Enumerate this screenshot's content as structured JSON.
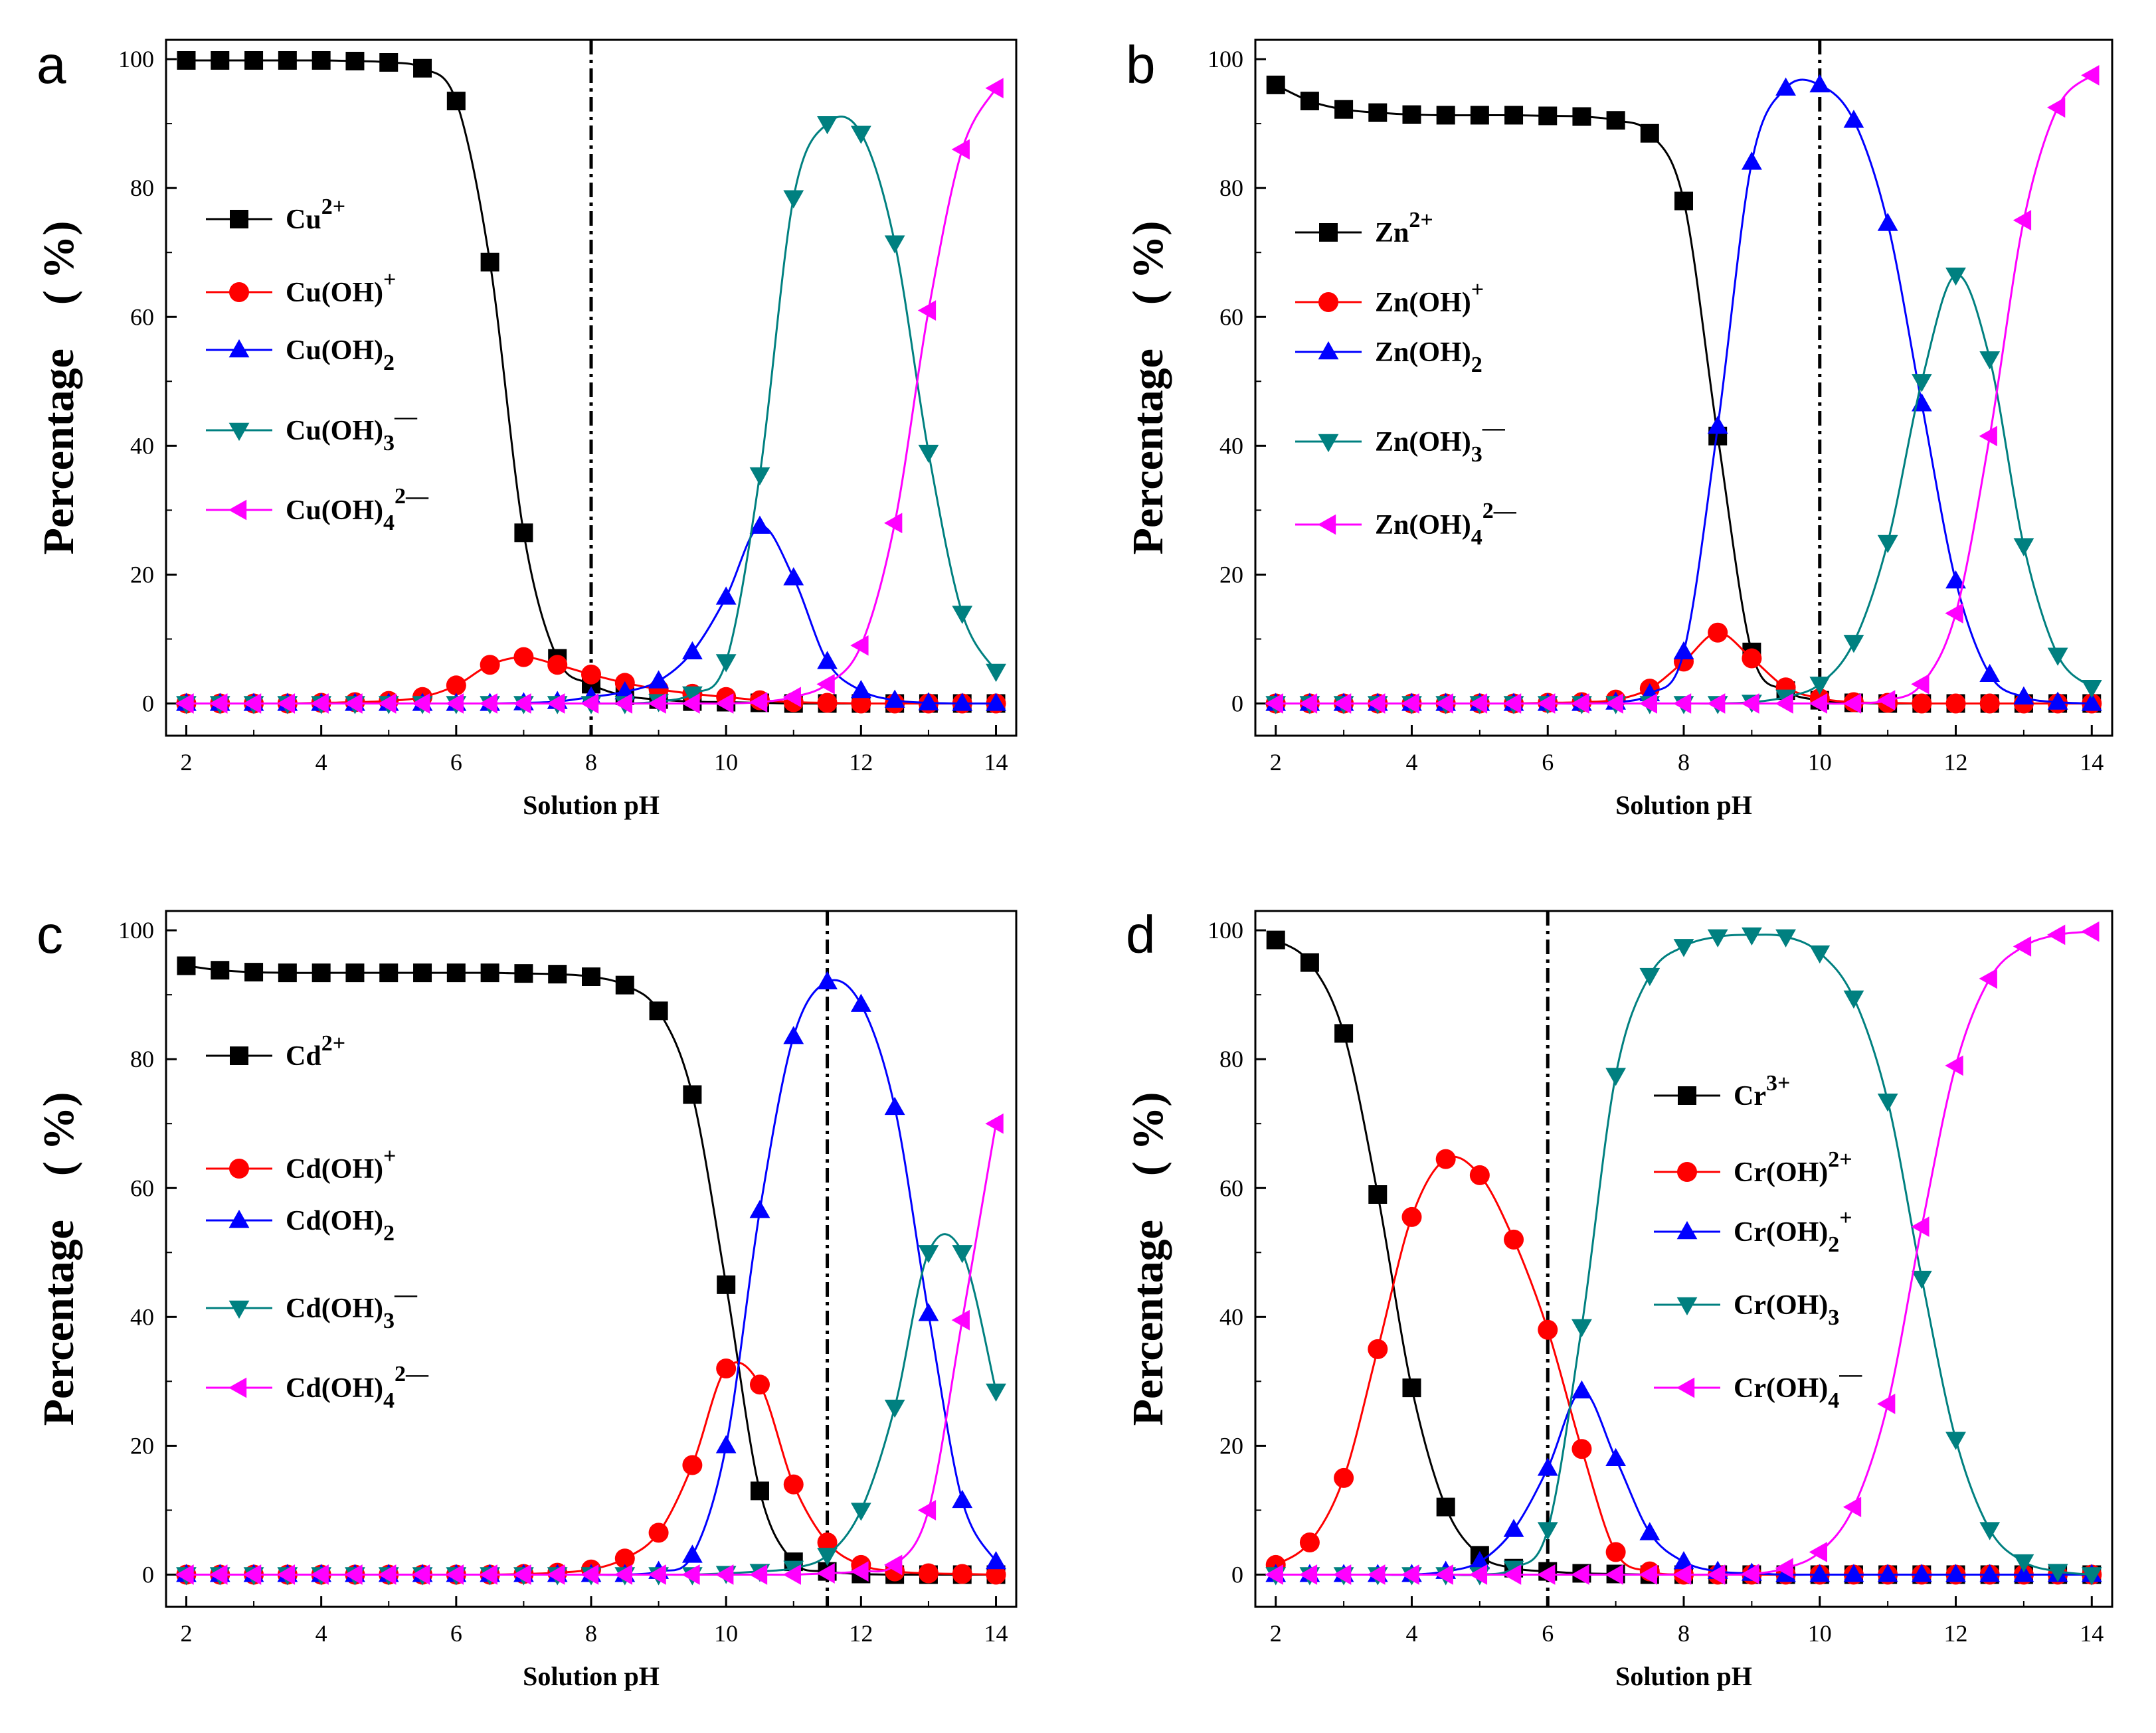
{
  "colors": {
    "series": [
      "#000000",
      "#ff0000",
      "#0000ff",
      "#008080",
      "#ff00ff"
    ],
    "axis": "#000000"
  },
  "chart_data": [
    {
      "panel": "a",
      "type": "line",
      "xlabel": "Solution pH",
      "ylabel": "Percentage　( %)",
      "xlim": [
        1.7,
        14.3
      ],
      "ylim": [
        -5,
        103
      ],
      "xticks": [
        2,
        4,
        6,
        8,
        10,
        12,
        14
      ],
      "yticks": [
        0,
        20,
        40,
        60,
        80,
        100
      ],
      "vline": 8,
      "x": [
        2,
        2.5,
        3,
        3.5,
        4,
        4.5,
        5,
        5.5,
        6,
        6.5,
        7,
        7.5,
        8,
        8.5,
        9,
        9.5,
        10,
        10.5,
        11,
        11.5,
        12,
        12.5,
        13,
        13.5,
        14
      ],
      "legend": [
        {
          "base": "Cu",
          "sup": "2+"
        },
        {
          "base": "Cu(OH)",
          "sup": "+"
        },
        {
          "base": "Cu(OH)",
          "sub": "2"
        },
        {
          "base": "Cu(OH)",
          "sub": "3",
          "sup": "—"
        },
        {
          "base": "Cu(OH)",
          "sub": "4",
          "sup": "2—"
        }
      ],
      "series": [
        {
          "marker": "square",
          "values": [
            99.8,
            99.8,
            99.8,
            99.8,
            99.8,
            99.7,
            99.5,
            98.6,
            93.5,
            68.5,
            26.5,
            7,
            3,
            1.2,
            0.6,
            0.3,
            0.2,
            0.1,
            0,
            0,
            0,
            0,
            0,
            0,
            0
          ]
        },
        {
          "marker": "circle",
          "values": [
            0,
            0,
            0,
            0,
            0.1,
            0.2,
            0.4,
            1,
            2.8,
            6,
            7.2,
            6,
            4.5,
            3.2,
            2.2,
            1.5,
            1,
            0.5,
            0.2,
            0.1,
            0,
            0,
            0,
            0,
            0
          ]
        },
        {
          "marker": "triangle-up",
          "values": [
            0,
            0,
            0,
            0,
            0,
            0,
            0,
            0,
            0,
            0,
            0.1,
            0.3,
            1,
            1.8,
            3.5,
            8,
            16.5,
            27.5,
            19.5,
            6.5,
            2,
            0.5,
            0.1,
            0,
            0
          ]
        },
        {
          "marker": "triangle-down",
          "values": [
            0,
            0,
            0,
            0,
            0,
            0,
            0,
            0,
            0,
            0,
            0,
            0,
            0,
            0,
            0.3,
            1.5,
            6.5,
            35.5,
            78.5,
            90,
            88.5,
            71.5,
            39,
            14,
            5
          ]
        },
        {
          "marker": "triangle-left",
          "values": [
            0,
            0,
            0,
            0,
            0,
            0,
            0,
            0,
            0,
            0,
            0,
            0,
            0,
            0,
            0,
            0,
            0,
            0.2,
            1,
            3,
            9,
            28,
            61,
            86,
            95.5
          ]
        }
      ]
    },
    {
      "panel": "b",
      "type": "line",
      "xlabel": "Solution pH",
      "ylabel": "Percentage　( %)",
      "xlim": [
        1.7,
        14.3
      ],
      "ylim": [
        -5,
        103
      ],
      "xticks": [
        2,
        4,
        6,
        8,
        10,
        12,
        14
      ],
      "yticks": [
        0,
        20,
        40,
        60,
        80,
        100
      ],
      "vline": 10,
      "x": [
        2,
        2.5,
        3,
        3.5,
        4,
        4.5,
        5,
        5.5,
        6,
        6.5,
        7,
        7.5,
        8,
        8.5,
        9,
        9.5,
        10,
        10.5,
        11,
        11.5,
        12,
        12.5,
        13,
        13.5,
        14
      ],
      "legend": [
        {
          "base": "Zn",
          "sup": "2+"
        },
        {
          "base": "Zn(OH)",
          "sup": "+"
        },
        {
          "base": "Zn(OH)",
          "sub": "2"
        },
        {
          "base": "Zn(OH)",
          "sub": "3",
          "sup": "—"
        },
        {
          "base": "Zn(OH)",
          "sub": "4",
          "sup": "2—"
        }
      ],
      "series": [
        {
          "marker": "square",
          "values": [
            96,
            93.5,
            92.2,
            91.7,
            91.4,
            91.3,
            91.3,
            91.3,
            91.2,
            91.1,
            90.5,
            88.5,
            78,
            41.5,
            8,
            2,
            0.5,
            0.1,
            0,
            0,
            0,
            0,
            0,
            0,
            0
          ]
        },
        {
          "marker": "circle",
          "values": [
            0,
            0,
            0,
            0,
            0,
            0,
            0,
            0,
            0.1,
            0.2,
            0.6,
            2.3,
            6.5,
            11,
            7,
            2.5,
            0.8,
            0.2,
            0.1,
            0,
            0,
            0,
            0,
            0,
            0
          ]
        },
        {
          "marker": "triangle-up",
          "values": [
            0,
            0,
            0,
            0,
            0,
            0,
            0,
            0,
            0,
            0,
            0.2,
            1.5,
            8,
            43,
            84,
            95.5,
            96,
            90.5,
            74.5,
            46.5,
            19,
            4.5,
            1,
            0.2,
            0
          ]
        },
        {
          "marker": "triangle-down",
          "values": [
            0,
            0,
            0,
            0,
            0,
            0,
            0,
            0,
            0,
            0,
            0,
            0,
            0,
            0,
            0.2,
            1,
            3,
            9.5,
            25,
            50,
            66.5,
            53.5,
            24.5,
            7.5,
            2.5
          ]
        },
        {
          "marker": "triangle-left",
          "values": [
            0,
            0,
            0,
            0,
            0,
            0,
            0,
            0,
            0,
            0,
            0,
            0,
            0,
            0,
            0,
            0,
            0,
            0,
            0.5,
            3,
            14,
            41.5,
            75,
            92.5,
            97.5
          ]
        }
      ]
    },
    {
      "panel": "c",
      "type": "line",
      "xlabel": "Solution pH",
      "ylabel": "Percentage　( %)",
      "xlim": [
        1.7,
        14.3
      ],
      "ylim": [
        -5,
        103
      ],
      "xticks": [
        2,
        4,
        6,
        8,
        10,
        12,
        14
      ],
      "yticks": [
        0,
        20,
        40,
        60,
        80,
        100
      ],
      "vline": 11.5,
      "x": [
        2,
        2.5,
        3,
        3.5,
        4,
        4.5,
        5,
        5.5,
        6,
        6.5,
        7,
        7.5,
        8,
        8.5,
        9,
        9.5,
        10,
        10.5,
        11,
        11.5,
        12,
        12.5,
        13,
        13.5,
        14
      ],
      "legend": [
        {
          "base": "Cd",
          "sup": "2+"
        },
        {
          "base": "Cd(OH)",
          "sup": "+"
        },
        {
          "base": "Cd(OH)",
          "sub": "2"
        },
        {
          "base": "Cd(OH)",
          "sub": "3",
          "sup": "—"
        },
        {
          "base": "Cd(OH)",
          "sub": "4",
          "sup": "2—"
        }
      ],
      "series": [
        {
          "marker": "square",
          "values": [
            94.5,
            93.8,
            93.5,
            93.4,
            93.4,
            93.4,
            93.4,
            93.4,
            93.4,
            93.4,
            93.3,
            93.2,
            92.8,
            91.5,
            87.5,
            74.5,
            45,
            13,
            2,
            0.5,
            0.1,
            0,
            0,
            0,
            0
          ]
        },
        {
          "marker": "circle",
          "values": [
            0,
            0,
            0,
            0,
            0,
            0,
            0,
            0,
            0,
            0,
            0.1,
            0.3,
            0.8,
            2.5,
            6.5,
            17,
            32,
            29.5,
            14,
            5,
            1.5,
            0.5,
            0.2,
            0.1,
            0
          ]
        },
        {
          "marker": "triangle-up",
          "values": [
            0,
            0,
            0,
            0,
            0,
            0,
            0,
            0,
            0,
            0,
            0,
            0,
            0,
            0,
            0.5,
            3,
            20,
            56.5,
            83.5,
            92,
            88.5,
            72.5,
            40.5,
            11.5,
            2
          ]
        },
        {
          "marker": "triangle-down",
          "values": [
            0,
            0,
            0,
            0,
            0,
            0,
            0,
            0,
            0,
            0,
            0,
            0,
            0,
            0,
            0,
            0,
            0.2,
            0.5,
            1,
            3,
            10,
            26,
            50,
            50,
            28.5
          ]
        },
        {
          "marker": "triangle-left",
          "values": [
            0,
            0,
            0,
            0,
            0,
            0,
            0,
            0,
            0,
            0,
            0,
            0,
            0,
            0,
            0,
            0,
            0,
            0,
            0,
            0.2,
            0.5,
            1.5,
            10,
            39.5,
            70
          ]
        }
      ]
    },
    {
      "panel": "d",
      "type": "line",
      "xlabel": "Solution pH",
      "ylabel": "Percentage　( %)",
      "xlim": [
        1.7,
        14.3
      ],
      "ylim": [
        -5,
        103
      ],
      "xticks": [
        2,
        4,
        6,
        8,
        10,
        12,
        14
      ],
      "yticks": [
        0,
        20,
        40,
        60,
        80,
        100
      ],
      "vline": 6,
      "x": [
        2,
        2.5,
        3,
        3.5,
        4,
        4.5,
        5,
        5.5,
        6,
        6.5,
        7,
        7.5,
        8,
        8.5,
        9,
        9.5,
        10,
        10.5,
        11,
        11.5,
        12,
        12.5,
        13,
        13.5,
        14
      ],
      "legend": [
        {
          "base": "Cr",
          "sup": "3+"
        },
        {
          "base": "Cr(OH)",
          "sup": "2+"
        },
        {
          "base": "Cr(OH)",
          "sub": "2",
          "sup": "+"
        },
        {
          "base": "Cr(OH)",
          "sub": "3"
        },
        {
          "base": "Cr(OH)",
          "sub": "4",
          "sup": "—"
        }
      ],
      "series": [
        {
          "marker": "square",
          "values": [
            98.5,
            95,
            84,
            59,
            29,
            10.5,
            3,
            1,
            0.5,
            0.2,
            0.1,
            0,
            0,
            0,
            0,
            0,
            0,
            0,
            0,
            0,
            0,
            0,
            0,
            0,
            0
          ]
        },
        {
          "marker": "circle",
          "values": [
            1.5,
            5,
            15,
            35,
            55.5,
            64.5,
            62,
            52,
            38,
            19.5,
            3.5,
            0.5,
            0,
            0,
            0,
            0,
            0,
            0,
            0,
            0,
            0,
            0,
            0,
            0,
            0
          ]
        },
        {
          "marker": "triangle-up",
          "values": [
            0,
            0,
            0,
            0,
            0,
            0.5,
            2,
            7,
            16.5,
            28.5,
            18,
            6.5,
            2,
            0.5,
            0.2,
            0,
            0,
            0,
            0,
            0,
            0,
            0,
            0,
            0,
            0
          ]
        },
        {
          "marker": "triangle-down",
          "values": [
            0,
            0,
            0,
            0,
            0,
            0,
            0,
            1,
            7,
            38.5,
            77.5,
            93,
            97.5,
            99,
            99.3,
            99,
            96.5,
            89.5,
            73.5,
            46,
            21,
            7,
            2,
            0.5,
            0
          ]
        },
        {
          "marker": "triangle-left",
          "values": [
            0,
            0,
            0,
            0,
            0,
            0,
            0,
            0,
            0,
            0,
            0,
            0,
            0,
            0,
            0.1,
            1,
            3.5,
            10.5,
            26.5,
            54,
            79,
            92.5,
            97.5,
            99.3,
            99.8
          ]
        }
      ]
    }
  ]
}
